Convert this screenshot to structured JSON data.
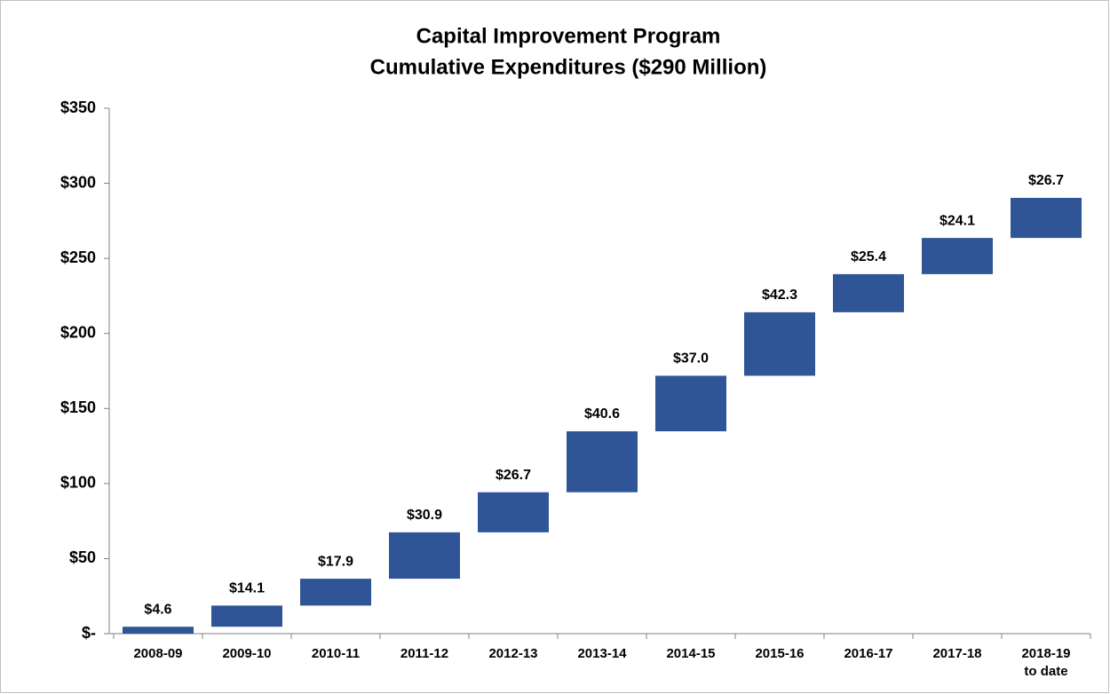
{
  "chart_data": {
    "type": "waterfall",
    "title": "Capital Improvement Program",
    "subtitle": "Cumulative Expenditures ($290 Million)",
    "categories": [
      "2008-09",
      "2009-10",
      "2010-11",
      "2011-12",
      "2012-13",
      "2013-14",
      "2014-15",
      "2015-16",
      "2016-17",
      "2017-18",
      "2018-19\nto date"
    ],
    "values": [
      4.6,
      14.1,
      17.9,
      30.9,
      26.7,
      40.6,
      37.0,
      42.3,
      25.4,
      24.1,
      26.7
    ],
    "value_labels": [
      "$4.6",
      "$14.1",
      "$17.9",
      "$30.9",
      "$26.7",
      "$40.6",
      "$37.0",
      "$42.3",
      "$25.4",
      "$24.1",
      "$26.7"
    ],
    "color": "#2f5597",
    "ylim": [
      0,
      350
    ],
    "yticks": [
      {
        "value": 0,
        "label": "$-"
      },
      {
        "value": 50,
        "label": "$50"
      },
      {
        "value": 100,
        "label": "$100"
      },
      {
        "value": 150,
        "label": "$150"
      },
      {
        "value": 200,
        "label": "$200"
      },
      {
        "value": 250,
        "label": "$250"
      },
      {
        "value": 300,
        "label": "$300"
      },
      {
        "value": 350,
        "label": "$350"
      }
    ],
    "grid": false
  }
}
